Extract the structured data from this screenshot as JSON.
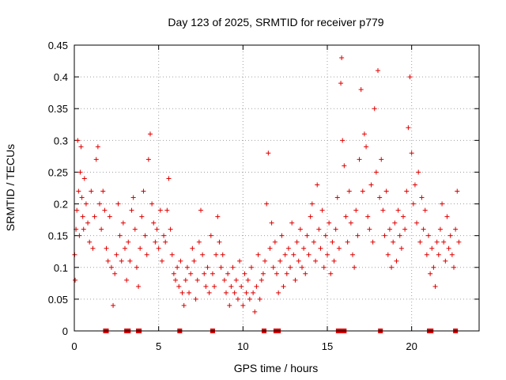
{
  "chart_data": {
    "type": "scatter",
    "title": "Day 123 of 2025, SRMTID for receiver p779",
    "xlabel": "GPS time / hours",
    "ylabel": "SRMTID / TECUs",
    "xlim": [
      0,
      24
    ],
    "ylim": [
      0,
      0.45
    ],
    "x_ticks": [
      0,
      5,
      10,
      15,
      20
    ],
    "x_tick_labels": [
      "0",
      "5",
      "10",
      "15",
      "20"
    ],
    "y_ticks": [
      0,
      0.05,
      0.1,
      0.15,
      0.2,
      0.25,
      0.3,
      0.35,
      0.4,
      0.45
    ],
    "y_tick_labels": [
      "0",
      "0.05",
      "0.1",
      "0.15",
      "0.2",
      "0.25",
      "0.3",
      "0.35",
      "0.4",
      "0.45"
    ],
    "grid": true,
    "marker": "plus",
    "color": "#e00000",
    "series": [
      {
        "name": "SRMTID",
        "points": [
          [
            0.02,
            0.12
          ],
          [
            0.05,
            0.08
          ],
          [
            0.1,
            0.16
          ],
          [
            0.15,
            0.19
          ],
          [
            0.2,
            0.3
          ],
          [
            0.25,
            0.22
          ],
          [
            0.3,
            0.15
          ],
          [
            0.35,
            0.25
          ],
          [
            0.4,
            0.29
          ],
          [
            0.45,
            0.21
          ],
          [
            0.5,
            0.18
          ],
          [
            0.55,
            0.16
          ],
          [
            0.6,
            0.24
          ],
          [
            0.7,
            0.2
          ],
          [
            0.8,
            0.17
          ],
          [
            0.9,
            0.14
          ],
          [
            1.0,
            0.22
          ],
          [
            1.1,
            0.13
          ],
          [
            1.2,
            0.18
          ],
          [
            1.3,
            0.27
          ],
          [
            1.4,
            0.29
          ],
          [
            1.5,
            0.2
          ],
          [
            1.6,
            0.16
          ],
          [
            1.7,
            0.22
          ],
          [
            1.8,
            0.19
          ],
          [
            1.9,
            0.13
          ],
          [
            2.0,
            0.11
          ],
          [
            2.1,
            0.18
          ],
          [
            2.2,
            0.1
          ],
          [
            2.3,
            0.04
          ],
          [
            2.4,
            0.09
          ],
          [
            2.5,
            0.12
          ],
          [
            2.6,
            0.2
          ],
          [
            2.7,
            0.15
          ],
          [
            2.8,
            0.11
          ],
          [
            2.9,
            0.17
          ],
          [
            3.0,
            0.13
          ],
          [
            3.1,
            0.08
          ],
          [
            3.2,
            0.14
          ],
          [
            3.3,
            0.11
          ],
          [
            3.4,
            0.19
          ],
          [
            3.5,
            0.21
          ],
          [
            3.6,
            0.16
          ],
          [
            3.7,
            0.1
          ],
          [
            3.8,
            0.07
          ],
          [
            3.9,
            0.13
          ],
          [
            4.0,
            0.18
          ],
          [
            4.1,
            0.22
          ],
          [
            4.2,
            0.15
          ],
          [
            4.3,
            0.12
          ],
          [
            4.4,
            0.27
          ],
          [
            4.5,
            0.31
          ],
          [
            4.6,
            0.2
          ],
          [
            4.7,
            0.17
          ],
          [
            4.8,
            0.14
          ],
          [
            4.9,
            0.16
          ],
          [
            5.0,
            0.13
          ],
          [
            5.1,
            0.19
          ],
          [
            5.2,
            0.11
          ],
          [
            5.3,
            0.15
          ],
          [
            5.4,
            0.14
          ],
          [
            5.5,
            0.19
          ],
          [
            5.6,
            0.24
          ],
          [
            5.7,
            0.16
          ],
          [
            5.8,
            0.12
          ],
          [
            5.9,
            0.09
          ],
          [
            6.0,
            0.08
          ],
          [
            6.1,
            0.1
          ],
          [
            6.2,
            0.07
          ],
          [
            6.3,
            0.11
          ],
          [
            6.4,
            0.06
          ],
          [
            6.5,
            0.04
          ],
          [
            6.6,
            0.08
          ],
          [
            6.7,
            0.1
          ],
          [
            6.8,
            0.06
          ],
          [
            6.9,
            0.09
          ],
          [
            7.0,
            0.13
          ],
          [
            7.1,
            0.11
          ],
          [
            7.2,
            0.05
          ],
          [
            7.3,
            0.08
          ],
          [
            7.4,
            0.14
          ],
          [
            7.5,
            0.19
          ],
          [
            7.6,
            0.12
          ],
          [
            7.7,
            0.09
          ],
          [
            7.8,
            0.07
          ],
          [
            7.9,
            0.1
          ],
          [
            8.0,
            0.06
          ],
          [
            8.1,
            0.15
          ],
          [
            8.2,
            0.09
          ],
          [
            8.3,
            0.07
          ],
          [
            8.4,
            0.12
          ],
          [
            8.5,
            0.18
          ],
          [
            8.6,
            0.14
          ],
          [
            8.7,
            0.1
          ],
          [
            8.8,
            0.12
          ],
          [
            8.9,
            0.08
          ],
          [
            9.0,
            0.06
          ],
          [
            9.1,
            0.09
          ],
          [
            9.2,
            0.04
          ],
          [
            9.3,
            0.07
          ],
          [
            9.4,
            0.1
          ],
          [
            9.5,
            0.06
          ],
          [
            9.6,
            0.08
          ],
          [
            9.7,
            0.05
          ],
          [
            9.8,
            0.11
          ],
          [
            9.9,
            0.07
          ],
          [
            10.0,
            0.04
          ],
          [
            10.1,
            0.09
          ],
          [
            10.2,
            0.06
          ],
          [
            10.3,
            0.08
          ],
          [
            10.4,
            0.05
          ],
          [
            10.5,
            0.1
          ],
          [
            10.6,
            0.06
          ],
          [
            10.7,
            0.03
          ],
          [
            10.8,
            0.07
          ],
          [
            10.9,
            0.12
          ],
          [
            11.0,
            0.05
          ],
          [
            11.1,
            0.08
          ],
          [
            11.2,
            0.09
          ],
          [
            11.3,
            0.11
          ],
          [
            11.4,
            0.2
          ],
          [
            11.5,
            0.28
          ],
          [
            11.6,
            0.13
          ],
          [
            11.7,
            0.17
          ],
          [
            11.8,
            0.1
          ],
          [
            11.9,
            0.14
          ],
          [
            12.0,
            0.09
          ],
          [
            12.1,
            0.06
          ],
          [
            12.2,
            0.11
          ],
          [
            12.3,
            0.15
          ],
          [
            12.4,
            0.07
          ],
          [
            12.5,
            0.12
          ],
          [
            12.6,
            0.09
          ],
          [
            12.7,
            0.13
          ],
          [
            12.8,
            0.1
          ],
          [
            12.9,
            0.17
          ],
          [
            13.0,
            0.12
          ],
          [
            13.1,
            0.08
          ],
          [
            13.2,
            0.14
          ],
          [
            13.3,
            0.11
          ],
          [
            13.4,
            0.16
          ],
          [
            13.5,
            0.1
          ],
          [
            13.6,
            0.13
          ],
          [
            13.7,
            0.09
          ],
          [
            13.8,
            0.15
          ],
          [
            13.9,
            0.12
          ],
          [
            14.0,
            0.18
          ],
          [
            14.1,
            0.2
          ],
          [
            14.2,
            0.14
          ],
          [
            14.3,
            0.11
          ],
          [
            14.4,
            0.23
          ],
          [
            14.5,
            0.16
          ],
          [
            14.6,
            0.13
          ],
          [
            14.7,
            0.19
          ],
          [
            14.8,
            0.1
          ],
          [
            14.9,
            0.15
          ],
          [
            15.0,
            0.12
          ],
          [
            15.1,
            0.17
          ],
          [
            15.2,
            0.09
          ],
          [
            15.3,
            0.14
          ],
          [
            15.4,
            0.11
          ],
          [
            15.5,
            0.16
          ],
          [
            15.6,
            0.21
          ],
          [
            15.7,
            0.13
          ],
          [
            15.8,
            0.39
          ],
          [
            15.85,
            0.43
          ],
          [
            15.9,
            0.3
          ],
          [
            16.0,
            0.26
          ],
          [
            16.1,
            0.18
          ],
          [
            16.2,
            0.14
          ],
          [
            16.3,
            0.22
          ],
          [
            16.4,
            0.17
          ],
          [
            16.5,
            0.12
          ],
          [
            16.6,
            0.1
          ],
          [
            16.7,
            0.19
          ],
          [
            16.8,
            0.15
          ],
          [
            16.9,
            0.27
          ],
          [
            17.0,
            0.38
          ],
          [
            17.1,
            0.22
          ],
          [
            17.2,
            0.31
          ],
          [
            17.3,
            0.29
          ],
          [
            17.4,
            0.18
          ],
          [
            17.5,
            0.16
          ],
          [
            17.6,
            0.23
          ],
          [
            17.7,
            0.14
          ],
          [
            17.8,
            0.35
          ],
          [
            17.9,
            0.25
          ],
          [
            18.0,
            0.41
          ],
          [
            18.1,
            0.21
          ],
          [
            18.2,
            0.27
          ],
          [
            18.3,
            0.19
          ],
          [
            18.4,
            0.15
          ],
          [
            18.5,
            0.22
          ],
          [
            18.6,
            0.12
          ],
          [
            18.7,
            0.16
          ],
          [
            18.8,
            0.1
          ],
          [
            18.9,
            0.14
          ],
          [
            19.0,
            0.17
          ],
          [
            19.1,
            0.11
          ],
          [
            19.2,
            0.19
          ],
          [
            19.3,
            0.15
          ],
          [
            19.4,
            0.13
          ],
          [
            19.5,
            0.18
          ],
          [
            19.6,
            0.16
          ],
          [
            19.7,
            0.22
          ],
          [
            19.8,
            0.32
          ],
          [
            19.9,
            0.4
          ],
          [
            20.0,
            0.28
          ],
          [
            20.1,
            0.2
          ],
          [
            20.2,
            0.23
          ],
          [
            20.3,
            0.17
          ],
          [
            20.4,
            0.25
          ],
          [
            20.5,
            0.14
          ],
          [
            20.6,
            0.21
          ],
          [
            20.7,
            0.16
          ],
          [
            20.8,
            0.19
          ],
          [
            20.9,
            0.12
          ],
          [
            21.0,
            0.15
          ],
          [
            21.1,
            0.09
          ],
          [
            21.2,
            0.13
          ],
          [
            21.3,
            0.1
          ],
          [
            21.4,
            0.07
          ],
          [
            21.5,
            0.14
          ],
          [
            21.6,
            0.12
          ],
          [
            21.7,
            0.16
          ],
          [
            21.8,
            0.2
          ],
          [
            21.9,
            0.14
          ],
          [
            22.0,
            0.11
          ],
          [
            22.1,
            0.18
          ],
          [
            22.2,
            0.13
          ],
          [
            22.3,
            0.15
          ],
          [
            22.4,
            0.12
          ],
          [
            22.5,
            0.1
          ],
          [
            22.6,
            0.16
          ],
          [
            22.7,
            0.22
          ],
          [
            22.8,
            0.14
          ]
        ],
        "zero_markers": [
          1.85,
          1.9,
          3.1,
          3.2,
          3.8,
          3.85,
          6.25,
          8.2,
          11.25,
          11.95,
          12.0,
          12.05,
          12.1,
          15.65,
          15.75,
          16.0,
          18.15,
          21.05,
          21.15,
          22.6
        ]
      }
    ]
  }
}
